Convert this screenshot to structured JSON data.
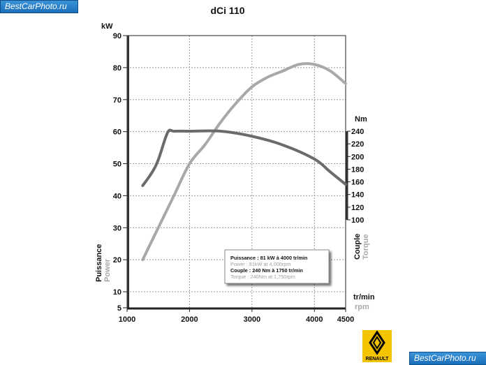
{
  "watermark": "BestCarPhoto.ru",
  "logo": {
    "text": "RENAULT"
  },
  "chart_data": {
    "type": "line",
    "title": "dCi 110",
    "x": {
      "label": "tr/min",
      "label_en": "rpm",
      "range": [
        1000,
        4500
      ],
      "ticks": [
        1000,
        2000,
        3000,
        4000,
        4500
      ]
    },
    "y_left": {
      "unit": "kW",
      "label": "Puissance",
      "label_en": "Power",
      "range": [
        5,
        90
      ],
      "ticks": [
        5,
        10,
        20,
        30,
        40,
        50,
        60,
        70,
        80,
        90
      ]
    },
    "y_right": {
      "unit": "Nm",
      "label": "Couple",
      "label_en": "Torque",
      "range": [
        100,
        240
      ],
      "ticks": [
        100,
        120,
        140,
        160,
        180,
        200,
        220,
        240
      ]
    },
    "grid": true,
    "series": [
      {
        "axis": "left",
        "color": "#a8a8a8",
        "points": [
          [
            1250,
            20
          ],
          [
            1500,
            30
          ],
          [
            1750,
            40
          ],
          [
            2000,
            50
          ],
          [
            2250,
            56
          ],
          [
            2500,
            63
          ],
          [
            2750,
            69
          ],
          [
            3000,
            74
          ],
          [
            3250,
            77
          ],
          [
            3500,
            79
          ],
          [
            3750,
            81
          ],
          [
            4000,
            81
          ],
          [
            4250,
            79
          ],
          [
            4500,
            75
          ]
        ]
      },
      {
        "axis": "right",
        "color": "#6b6b6b",
        "points": [
          [
            1250,
            154
          ],
          [
            1400,
            175
          ],
          [
            1500,
            195
          ],
          [
            1650,
            238
          ],
          [
            1750,
            240
          ],
          [
            2000,
            240
          ],
          [
            2500,
            240
          ],
          [
            3000,
            232
          ],
          [
            3500,
            218
          ],
          [
            4000,
            196
          ],
          [
            4250,
            176
          ],
          [
            4500,
            156
          ]
        ]
      }
    ],
    "annotation": {
      "lines": [
        "Puissance : 81 kW à 4000 tr/min",
        "Power : 81kW at 4,000rpm",
        "Couple : 240 Nm à 1750 tr/min",
        "Torque : 240Nm at 1,750rpm"
      ]
    }
  }
}
